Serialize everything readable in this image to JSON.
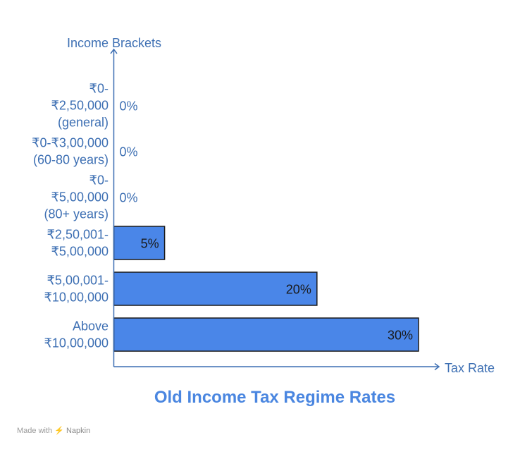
{
  "chart_data": {
    "type": "bar",
    "orientation": "horizontal",
    "title": "Old Income Tax Regime Rates",
    "ylabel": "Income Brackets",
    "xlabel": "Tax Rate",
    "categories": [
      [
        "₹0-",
        "₹2,50,000",
        "(general)"
      ],
      [
        "₹0-₹3,00,000",
        "(60-80 years)"
      ],
      [
        "₹0-",
        "₹5,00,000",
        "(80+ years)"
      ],
      [
        "₹2,50,001-",
        "₹5,00,000"
      ],
      [
        "₹5,00,001-",
        "₹10,00,000"
      ],
      [
        "Above",
        "₹10,00,000"
      ]
    ],
    "values": [
      0,
      0,
      0,
      5,
      20,
      30
    ],
    "value_labels": [
      "0%",
      "0%",
      "0%",
      "5%",
      "20%",
      "30%"
    ],
    "xlim": [
      0,
      30
    ],
    "grid": false,
    "bar_color": "#4a86e8"
  },
  "footer": {
    "made_with": "Made with",
    "brand": "Napkin"
  }
}
